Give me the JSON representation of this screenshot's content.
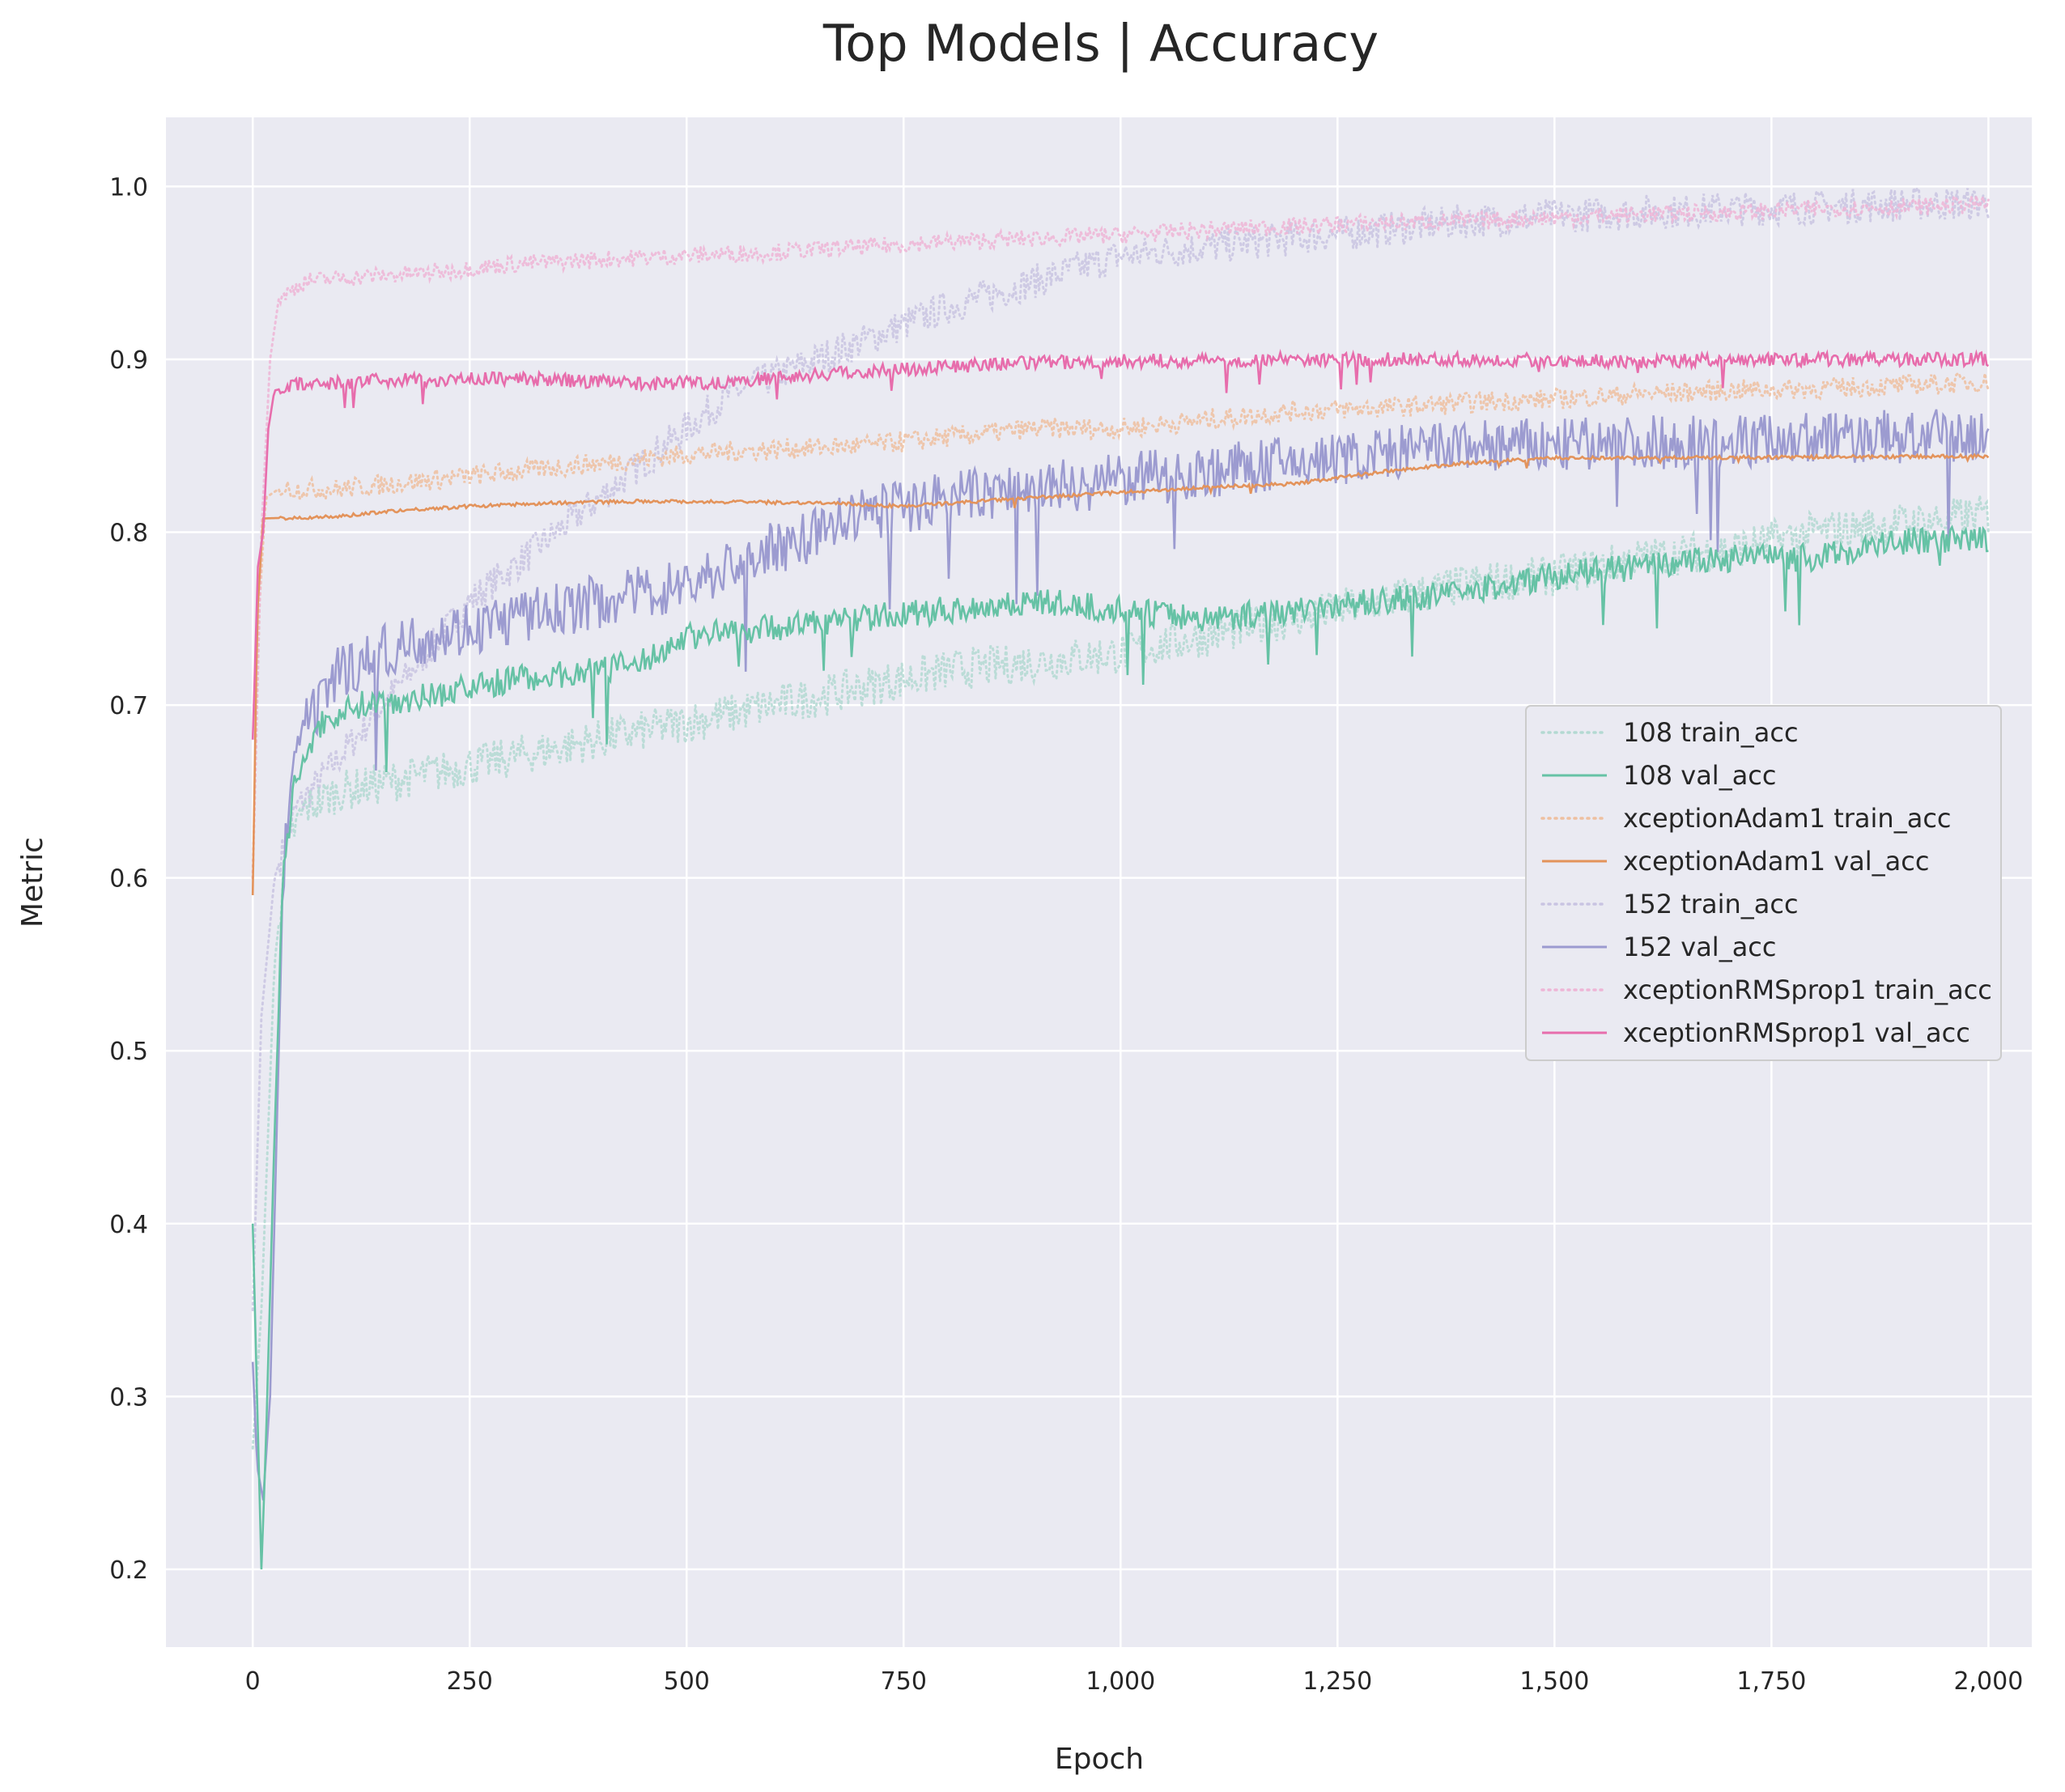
{
  "chart_data": {
    "type": "line",
    "title": "Top Models | Accuracy",
    "xlabel": "Epoch",
    "ylabel": "Metric",
    "xlim": [
      -100,
      2050
    ],
    "ylim": [
      0.155,
      1.04
    ],
    "x_ticks": [
      0,
      250,
      500,
      750,
      1000,
      1250,
      1500,
      1750,
      2000
    ],
    "x_tick_labels": [
      "0",
      "250",
      "500",
      "750",
      "1,000",
      "1,250",
      "1,500",
      "1,750",
      "2,000"
    ],
    "y_ticks": [
      0.2,
      0.3,
      0.4,
      0.5,
      0.6,
      0.7,
      0.8,
      0.9,
      1.0
    ],
    "y_tick_labels": [
      "0.2",
      "0.3",
      "0.4",
      "0.5",
      "0.6",
      "0.7",
      "0.8",
      "0.9",
      "1.0"
    ],
    "grid": true,
    "legend_position": "center-right",
    "colors": {
      "background": "#eaeaf2",
      "grid": "#ffffff",
      "m108": "#66c2a5",
      "m108_train": "#b3d9d2",
      "adam": "#e3935b",
      "adam_train": "#eec0a0",
      "m152": "#9c9bd0",
      "m152_train": "#c9c4e2",
      "rms": "#e76dac",
      "rms_train": "#eeb5d6"
    },
    "series": [
      {
        "name": "108 train_acc",
        "style": "dotted",
        "color_key": "m108_train",
        "noise": 0.012,
        "points": [
          [
            0,
            0.27
          ],
          [
            10,
            0.35
          ],
          [
            25,
            0.55
          ],
          [
            40,
            0.62
          ],
          [
            60,
            0.64
          ],
          [
            100,
            0.65
          ],
          [
            200,
            0.66
          ],
          [
            300,
            0.67
          ],
          [
            400,
            0.68
          ],
          [
            500,
            0.69
          ],
          [
            600,
            0.7
          ],
          [
            700,
            0.71
          ],
          [
            800,
            0.72
          ],
          [
            900,
            0.725
          ],
          [
            1000,
            0.73
          ],
          [
            1100,
            0.74
          ],
          [
            1200,
            0.75
          ],
          [
            1300,
            0.76
          ],
          [
            1400,
            0.77
          ],
          [
            1500,
            0.775
          ],
          [
            1600,
            0.785
          ],
          [
            1700,
            0.79
          ],
          [
            1800,
            0.8
          ],
          [
            1900,
            0.805
          ],
          [
            2000,
            0.81
          ]
        ]
      },
      {
        "name": "108 val_acc",
        "style": "solid",
        "color_key": "m108",
        "noise": 0.008,
        "points": [
          [
            0,
            0.4
          ],
          [
            5,
            0.3
          ],
          [
            10,
            0.2
          ],
          [
            15,
            0.27
          ],
          [
            25,
            0.45
          ],
          [
            35,
            0.6
          ],
          [
            50,
            0.66
          ],
          [
            80,
            0.69
          ],
          [
            120,
            0.7
          ],
          [
            200,
            0.705
          ],
          [
            300,
            0.715
          ],
          [
            400,
            0.72
          ],
          [
            450,
            0.725
          ],
          [
            500,
            0.74
          ],
          [
            600,
            0.745
          ],
          [
            700,
            0.75
          ],
          [
            800,
            0.755
          ],
          [
            900,
            0.76
          ],
          [
            1000,
            0.755
          ],
          [
            1100,
            0.75
          ],
          [
            1200,
            0.755
          ],
          [
            1300,
            0.76
          ],
          [
            1400,
            0.765
          ],
          [
            1500,
            0.775
          ],
          [
            1600,
            0.78
          ],
          [
            1700,
            0.785
          ],
          [
            1800,
            0.785
          ],
          [
            1900,
            0.795
          ],
          [
            2000,
            0.795
          ]
        ]
      },
      {
        "name": "xceptionAdam1 train_acc",
        "style": "dotted",
        "color_key": "adam_train",
        "noise": 0.006,
        "points": [
          [
            0,
            0.6
          ],
          [
            8,
            0.76
          ],
          [
            15,
            0.82
          ],
          [
            30,
            0.825
          ],
          [
            100,
            0.825
          ],
          [
            200,
            0.83
          ],
          [
            300,
            0.835
          ],
          [
            400,
            0.84
          ],
          [
            500,
            0.845
          ],
          [
            600,
            0.848
          ],
          [
            700,
            0.85
          ],
          [
            800,
            0.855
          ],
          [
            900,
            0.86
          ],
          [
            1000,
            0.86
          ],
          [
            1100,
            0.865
          ],
          [
            1200,
            0.87
          ],
          [
            1300,
            0.872
          ],
          [
            1400,
            0.875
          ],
          [
            1500,
            0.877
          ],
          [
            1600,
            0.88
          ],
          [
            1700,
            0.882
          ],
          [
            1800,
            0.883
          ],
          [
            1900,
            0.885
          ],
          [
            2000,
            0.887
          ]
        ]
      },
      {
        "name": "xceptionAdam1 val_acc",
        "style": "solid",
        "color_key": "adam",
        "noise": 0.001,
        "points": [
          [
            0,
            0.59
          ],
          [
            5,
            0.75
          ],
          [
            12,
            0.808
          ],
          [
            100,
            0.809
          ],
          [
            150,
            0.812
          ],
          [
            250,
            0.815
          ],
          [
            350,
            0.817
          ],
          [
            450,
            0.818
          ],
          [
            650,
            0.817
          ],
          [
            750,
            0.815
          ],
          [
            900,
            0.82
          ],
          [
            1000,
            0.823
          ],
          [
            1100,
            0.826
          ],
          [
            1200,
            0.828
          ],
          [
            1300,
            0.835
          ],
          [
            1400,
            0.84
          ],
          [
            1500,
            0.843
          ],
          [
            1600,
            0.843
          ],
          [
            2000,
            0.844
          ]
        ]
      },
      {
        "name": "152 train_acc",
        "style": "dotted",
        "color_key": "m152_train",
        "noise": 0.01,
        "points": [
          [
            0,
            0.35
          ],
          [
            10,
            0.52
          ],
          [
            25,
            0.6
          ],
          [
            50,
            0.64
          ],
          [
            100,
            0.67
          ],
          [
            150,
            0.7
          ],
          [
            200,
            0.73
          ],
          [
            250,
            0.76
          ],
          [
            300,
            0.78
          ],
          [
            350,
            0.8
          ],
          [
            400,
            0.82
          ],
          [
            450,
            0.84
          ],
          [
            500,
            0.86
          ],
          [
            550,
            0.88
          ],
          [
            600,
            0.89
          ],
          [
            650,
            0.9
          ],
          [
            700,
            0.91
          ],
          [
            800,
            0.93
          ],
          [
            900,
            0.945
          ],
          [
            1000,
            0.96
          ],
          [
            1100,
            0.965
          ],
          [
            1200,
            0.97
          ],
          [
            1300,
            0.975
          ],
          [
            1400,
            0.98
          ],
          [
            1500,
            0.983
          ],
          [
            1600,
            0.985
          ],
          [
            1700,
            0.987
          ],
          [
            1800,
            0.988
          ],
          [
            1900,
            0.99
          ],
          [
            2000,
            0.99
          ]
        ]
      },
      {
        "name": "152 val_acc",
        "style": "solid",
        "color_key": "m152",
        "noise": 0.016,
        "points": [
          [
            0,
            0.32
          ],
          [
            5,
            0.26
          ],
          [
            12,
            0.24
          ],
          [
            20,
            0.3
          ],
          [
            35,
            0.6
          ],
          [
            50,
            0.68
          ],
          [
            80,
            0.7
          ],
          [
            100,
            0.72
          ],
          [
            200,
            0.74
          ],
          [
            300,
            0.75
          ],
          [
            400,
            0.76
          ],
          [
            500,
            0.77
          ],
          [
            600,
            0.79
          ],
          [
            700,
            0.81
          ],
          [
            800,
            0.82
          ],
          [
            900,
            0.825
          ],
          [
            1000,
            0.83
          ],
          [
            1100,
            0.835
          ],
          [
            1200,
            0.84
          ],
          [
            1300,
            0.845
          ],
          [
            1400,
            0.85
          ],
          [
            1500,
            0.85
          ],
          [
            1600,
            0.852
          ],
          [
            1700,
            0.853
          ],
          [
            1800,
            0.855
          ],
          [
            1900,
            0.855
          ],
          [
            2000,
            0.855
          ]
        ]
      },
      {
        "name": "xceptionRMSprop1 train_acc",
        "style": "dotted",
        "color_key": "rms_train",
        "noise": 0.005,
        "points": [
          [
            0,
            0.6
          ],
          [
            10,
            0.8
          ],
          [
            20,
            0.9
          ],
          [
            30,
            0.935
          ],
          [
            60,
            0.945
          ],
          [
            100,
            0.947
          ],
          [
            200,
            0.95
          ],
          [
            300,
            0.955
          ],
          [
            400,
            0.958
          ],
          [
            500,
            0.96
          ],
          [
            600,
            0.962
          ],
          [
            700,
            0.965
          ],
          [
            800,
            0.968
          ],
          [
            900,
            0.97
          ],
          [
            1000,
            0.972
          ],
          [
            1100,
            0.975
          ],
          [
            1200,
            0.977
          ],
          [
            1300,
            0.979
          ],
          [
            1400,
            0.98
          ],
          [
            1500,
            0.982
          ],
          [
            1600,
            0.984
          ],
          [
            1700,
            0.985
          ],
          [
            1800,
            0.987
          ],
          [
            1900,
            0.988
          ],
          [
            2000,
            0.99
          ]
        ]
      },
      {
        "name": "xceptionRMSprop1 val_acc",
        "style": "solid",
        "color_key": "rms",
        "noise": 0.004,
        "points": [
          [
            0,
            0.68
          ],
          [
            6,
            0.78
          ],
          [
            12,
            0.8
          ],
          [
            18,
            0.86
          ],
          [
            25,
            0.882
          ],
          [
            50,
            0.885
          ],
          [
            150,
            0.888
          ],
          [
            300,
            0.889
          ],
          [
            450,
            0.886
          ],
          [
            550,
            0.887
          ],
          [
            620,
            0.89
          ],
          [
            700,
            0.893
          ],
          [
            800,
            0.896
          ],
          [
            900,
            0.898
          ],
          [
            1000,
            0.899
          ],
          [
            1200,
            0.9
          ],
          [
            1400,
            0.9
          ],
          [
            1600,
            0.899
          ],
          [
            1800,
            0.9
          ],
          [
            2000,
            0.9
          ]
        ]
      }
    ]
  }
}
